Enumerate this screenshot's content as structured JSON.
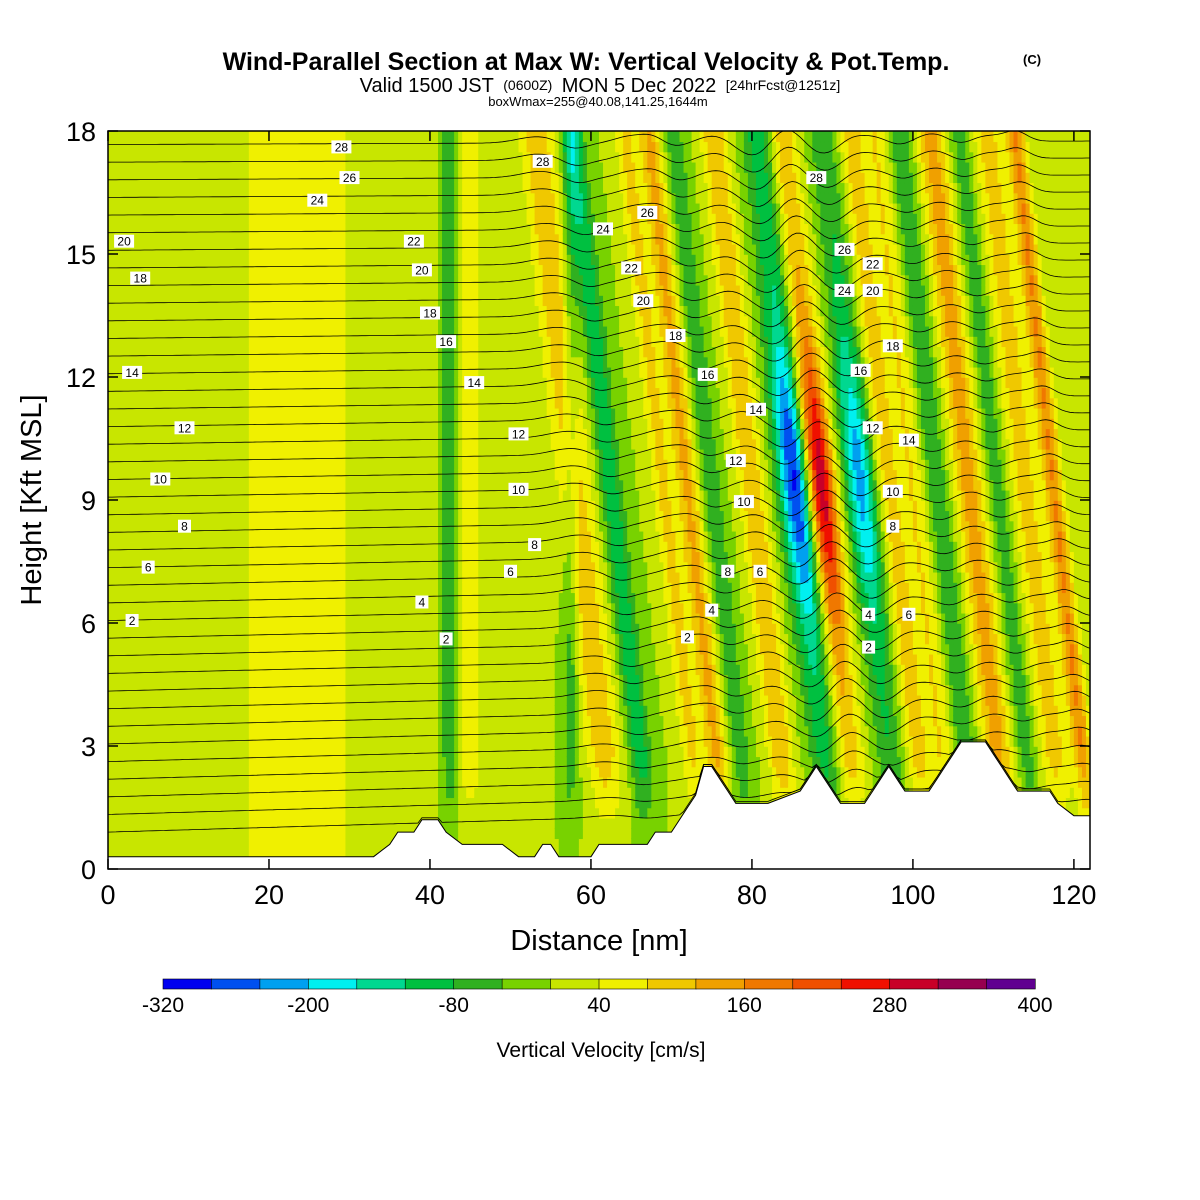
{
  "header": {
    "title_main": "Wind-Parallel Section at Max W: Vertical Velocity & Pot.Temp.",
    "copyright_mark": "(C)",
    "subtitle_prefix": "Valid 1500 JST",
    "subtitle_utc": "(0600Z)",
    "subtitle_date": "MON 5 Dec 2022",
    "subtitle_forecast": "[24hrFcst@1251z]",
    "subtitle_box": "boxWmax=255@40.08,141.25,1644m"
  },
  "chart_data": {
    "type": "heatmap",
    "title": "Wind-Parallel Section at Max W: Vertical Velocity & Pot.Temp.",
    "xlabel": "Distance [nm]",
    "ylabel": "Height [Kft MSL]",
    "xlim": [
      0,
      122
    ],
    "ylim": [
      0,
      18
    ],
    "x_ticks": [
      0,
      20,
      40,
      60,
      80,
      100,
      120
    ],
    "y_ticks": [
      0,
      3,
      6,
      9,
      12,
      15,
      18
    ],
    "x_tick_labels": [
      "0",
      "20",
      "40",
      "60",
      "80",
      "100",
      "120"
    ],
    "y_tick_labels": [
      "0",
      "3",
      "6",
      "9",
      "12",
      "15",
      "18"
    ],
    "grid": false,
    "colorbar": {
      "title": "Vertical Velocity [cm/s]",
      "min": -320,
      "max": 400,
      "step": 40,
      "tick_values": [
        -320,
        -200,
        -80,
        40,
        160,
        280,
        400
      ],
      "tick_labels": [
        "-320",
        "-200",
        "-80",
        "40",
        "160",
        "280",
        "400"
      ],
      "colors": [
        "#0000f0",
        "#0050f0",
        "#00a0f0",
        "#00f0f0",
        "#00d890",
        "#00c040",
        "#30b020",
        "#78d200",
        "#c8e600",
        "#f0f000",
        "#f0c800",
        "#f0a000",
        "#f07800",
        "#f05000",
        "#f01000",
        "#c80028",
        "#960050",
        "#600090"
      ]
    },
    "velocity_bands": [
      {
        "x": 0,
        "half_width": 30,
        "strength": 20
      },
      {
        "x": 24,
        "half_width": 8,
        "strength": 50
      },
      {
        "x": 45,
        "half_width": 1.5,
        "strength": 70
      },
      {
        "x": 42.5,
        "half_width": 0.9,
        "strength": -90
      },
      {
        "x": 57.5,
        "half_width": 1.0,
        "strength": -70
      },
      {
        "x": 62,
        "half_width": 2.2,
        "strength": 110
      },
      {
        "x": 66.5,
        "half_width": 1.4,
        "strength": -110
      },
      {
        "x": 73,
        "half_width": 1.4,
        "strength": 90
      },
      {
        "x": 76,
        "half_width": 1.4,
        "strength": 130
      },
      {
        "x": 79,
        "half_width": 1.3,
        "strength": -70
      },
      {
        "x": 84,
        "half_width": 1.6,
        "strength": 120
      },
      {
        "x": 89.5,
        "half_width": 2.0,
        "strength": -300
      },
      {
        "x": 92.5,
        "half_width": 1.8,
        "strength": 330
      },
      {
        "x": 97.5,
        "half_width": 1.8,
        "strength": -220
      },
      {
        "x": 101,
        "half_width": 1.5,
        "strength": 100
      },
      {
        "x": 104,
        "half_width": 1.6,
        "strength": 80
      },
      {
        "x": 107,
        "half_width": 1.4,
        "strength": -80
      },
      {
        "x": 111,
        "half_width": 1.8,
        "strength": 140
      },
      {
        "x": 114.5,
        "half_width": 1.2,
        "strength": -70
      },
      {
        "x": 118,
        "half_width": 1.8,
        "strength": 100
      },
      {
        "x": 121.5,
        "half_width": 1.2,
        "strength": 160
      }
    ],
    "terrain": {
      "x": [
        0,
        30,
        31,
        33,
        35,
        36,
        38,
        39,
        41,
        42,
        44,
        49,
        51,
        53,
        54,
        55,
        56,
        57,
        58,
        60,
        61,
        63,
        65,
        67,
        68,
        70,
        72,
        73,
        74,
        75,
        76,
        77,
        78,
        79,
        80,
        81,
        82,
        86,
        87,
        88,
        91,
        92,
        93,
        94,
        95,
        96,
        97,
        98,
        99,
        100,
        101,
        102,
        103,
        104,
        105,
        106,
        107,
        109,
        110,
        111,
        112,
        113,
        114,
        115,
        116,
        117,
        118,
        120,
        121,
        122
      ],
      "heights": [
        0.3,
        0.3,
        0.3,
        0.3,
        0.6,
        0.9,
        0.9,
        1.2,
        1.2,
        0.9,
        0.6,
        0.6,
        0.3,
        0.3,
        0.6,
        0.6,
        0.3,
        0.3,
        0.3,
        0.3,
        0.6,
        0.6,
        0.6,
        0.6,
        0.9,
        0.9,
        1.5,
        1.8,
        2.5,
        2.5,
        2.2,
        1.9,
        1.6,
        1.6,
        1.6,
        1.6,
        1.6,
        1.9,
        2.2,
        2.5,
        1.6,
        1.6,
        1.6,
        1.6,
        1.9,
        2.2,
        2.5,
        2.2,
        1.9,
        1.9,
        1.9,
        1.9,
        2.2,
        2.5,
        2.8,
        3.1,
        3.1,
        3.1,
        2.8,
        2.5,
        2.2,
        1.9,
        1.9,
        1.9,
        1.9,
        1.9,
        1.6,
        1.3,
        1.3,
        1.3
      ]
    },
    "theta_contours": {
      "levels": [
        2,
        4,
        6,
        8,
        10,
        12,
        14,
        16,
        18,
        20,
        22,
        24,
        26,
        28
      ],
      "labels": [
        {
          "x": 3,
          "h": 6.05,
          "text": "2"
        },
        {
          "x": 42,
          "h": 5.6,
          "text": "2"
        },
        {
          "x": 72,
          "h": 5.65,
          "text": "2"
        },
        {
          "x": 94.5,
          "h": 5.4,
          "text": "2"
        },
        {
          "x": 39,
          "h": 6.5,
          "text": "4"
        },
        {
          "x": 75,
          "h": 6.3,
          "text": "4"
        },
        {
          "x": 94.5,
          "h": 6.2,
          "text": "4"
        },
        {
          "x": 5,
          "h": 7.35,
          "text": "6"
        },
        {
          "x": 50,
          "h": 7.25,
          "text": "6"
        },
        {
          "x": 81,
          "h": 7.25,
          "text": "6"
        },
        {
          "x": 99.5,
          "h": 6.2,
          "text": "6"
        },
        {
          "x": 9.5,
          "h": 8.35,
          "text": "8"
        },
        {
          "x": 53,
          "h": 7.9,
          "text": "8"
        },
        {
          "x": 77,
          "h": 7.25,
          "text": "8"
        },
        {
          "x": 97.5,
          "h": 8.35,
          "text": "8"
        },
        {
          "x": 6.5,
          "h": 9.5,
          "text": "10"
        },
        {
          "x": 51,
          "h": 9.25,
          "text": "10"
        },
        {
          "x": 79,
          "h": 8.95,
          "text": "10"
        },
        {
          "x": 97.5,
          "h": 9.2,
          "text": "10"
        },
        {
          "x": 9.5,
          "h": 10.75,
          "text": "12"
        },
        {
          "x": 51,
          "h": 10.6,
          "text": "12"
        },
        {
          "x": 78,
          "h": 9.95,
          "text": "12"
        },
        {
          "x": 95,
          "h": 10.75,
          "text": "12"
        },
        {
          "x": 3,
          "h": 12.1,
          "text": "14"
        },
        {
          "x": 45.5,
          "h": 11.85,
          "text": "14"
        },
        {
          "x": 80.5,
          "h": 11.2,
          "text": "14"
        },
        {
          "x": 99.5,
          "h": 10.45,
          "text": "14"
        },
        {
          "x": 42,
          "h": 12.85,
          "text": "16"
        },
        {
          "x": 74.5,
          "h": 12.05,
          "text": "16"
        },
        {
          "x": 93.5,
          "h": 12.15,
          "text": "16"
        },
        {
          "x": 4,
          "h": 14.4,
          "text": "18"
        },
        {
          "x": 40,
          "h": 13.55,
          "text": "18"
        },
        {
          "x": 70.5,
          "h": 13.0,
          "text": "18"
        },
        {
          "x": 97.5,
          "h": 12.75,
          "text": "18"
        },
        {
          "x": 2,
          "h": 15.3,
          "text": "20"
        },
        {
          "x": 39,
          "h": 14.6,
          "text": "20"
        },
        {
          "x": 66.5,
          "h": 13.85,
          "text": "20"
        },
        {
          "x": 95,
          "h": 14.1,
          "text": "20"
        },
        {
          "x": 38,
          "h": 15.3,
          "text": "22"
        },
        {
          "x": 65,
          "h": 14.65,
          "text": "22"
        },
        {
          "x": 95,
          "h": 14.75,
          "text": "22"
        },
        {
          "x": 26,
          "h": 16.3,
          "text": "24"
        },
        {
          "x": 61.5,
          "h": 15.6,
          "text": "24"
        },
        {
          "x": 91.5,
          "h": 14.1,
          "text": "24"
        },
        {
          "x": 30,
          "h": 16.85,
          "text": "26"
        },
        {
          "x": 67,
          "h": 16.0,
          "text": "26"
        },
        {
          "x": 91.5,
          "h": 15.1,
          "text": "26"
        },
        {
          "x": 29,
          "h": 17.6,
          "text": "28"
        },
        {
          "x": 54,
          "h": 17.25,
          "text": "28"
        },
        {
          "x": 88,
          "h": 16.85,
          "text": "28"
        }
      ]
    }
  }
}
